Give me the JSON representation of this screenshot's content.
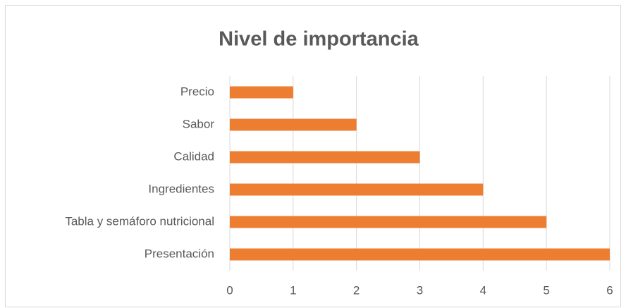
{
  "chart_data": {
    "type": "bar",
    "orientation": "horizontal",
    "title": "Nivel de importancia",
    "categories": [
      "Precio",
      "Sabor",
      "Calidad",
      "Ingredientes",
      "Tabla y semáforo nutricional",
      "Presentación"
    ],
    "values": [
      1,
      2,
      3,
      4,
      5,
      6
    ],
    "color": "#ed7d31",
    "xlim": [
      0,
      6
    ],
    "xticks": [
      0,
      1,
      2,
      3,
      4,
      5,
      6
    ],
    "grid": true
  }
}
